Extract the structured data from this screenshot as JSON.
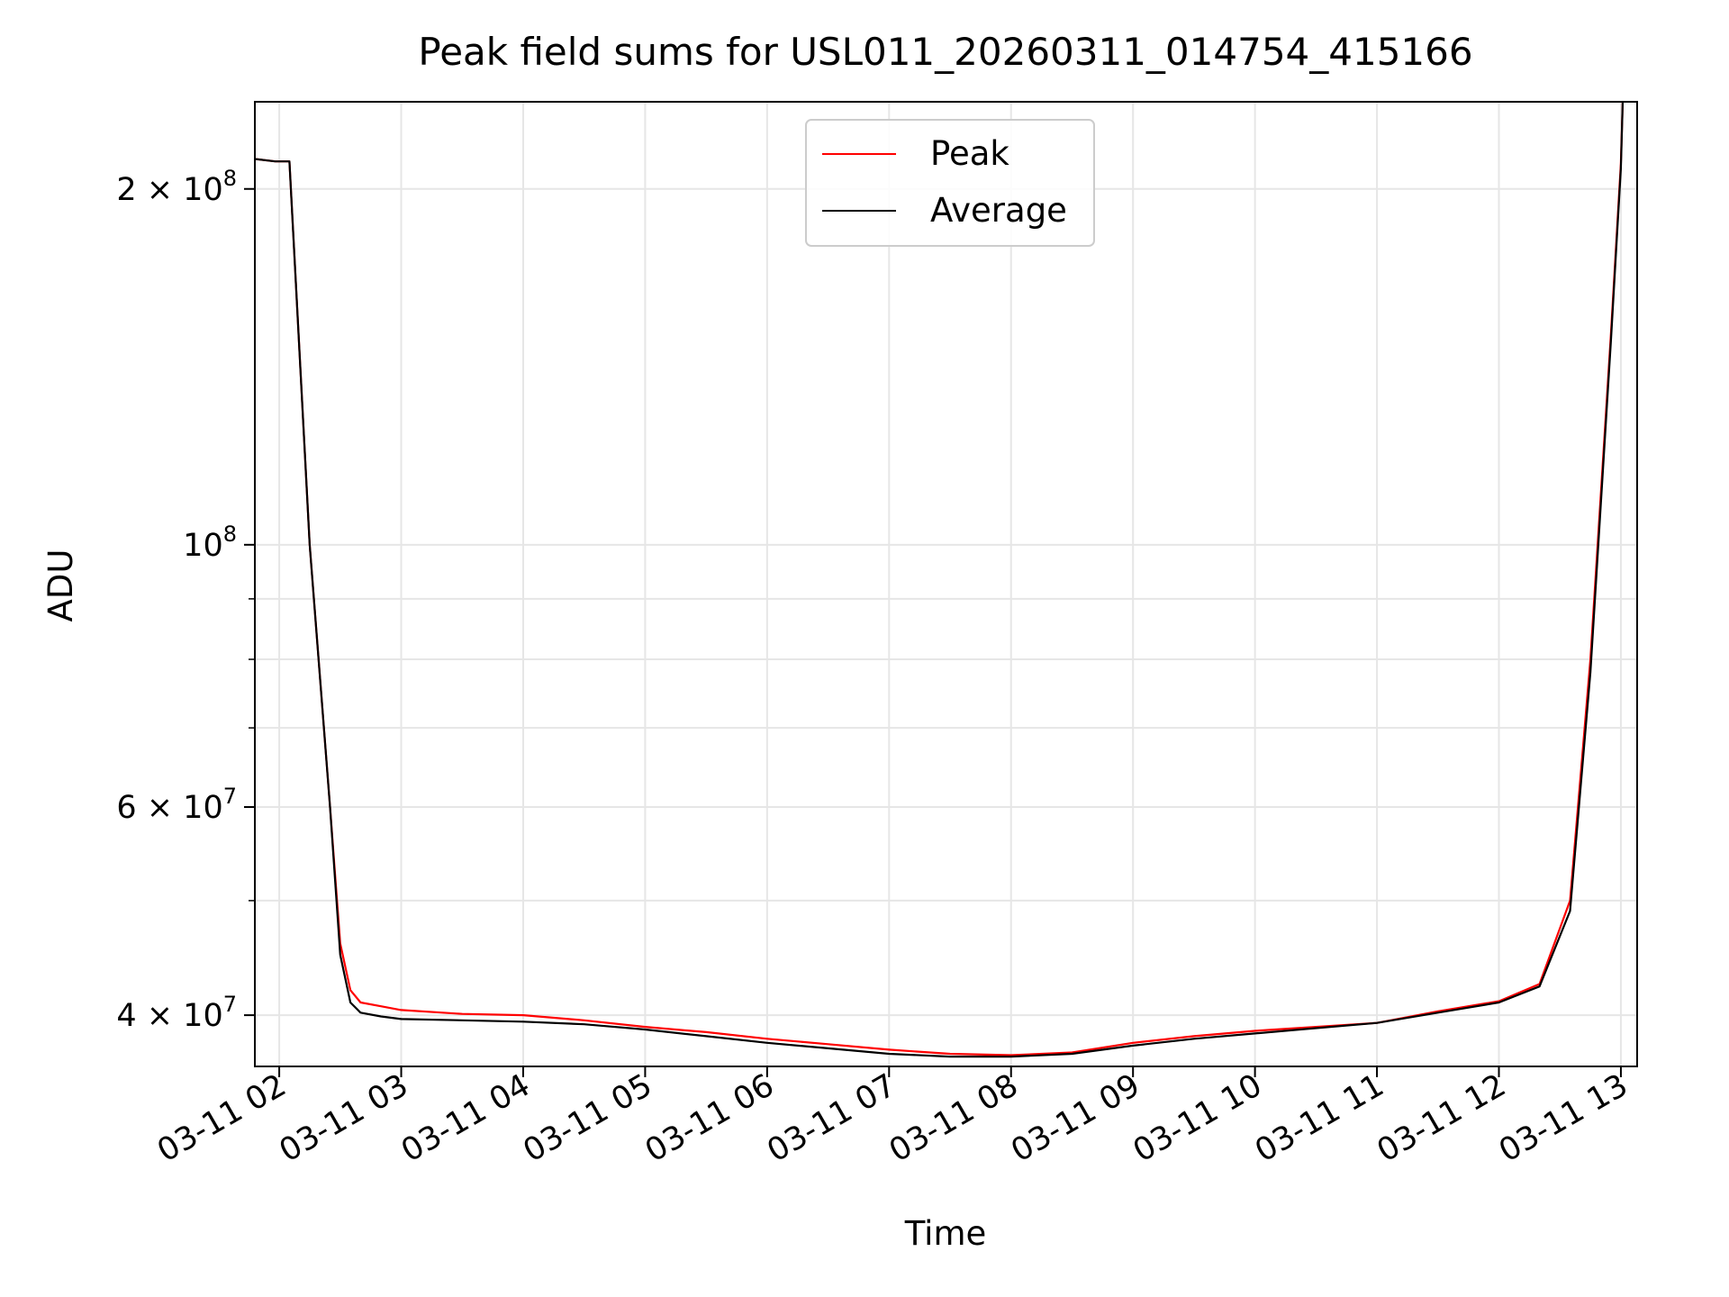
{
  "chart_data": {
    "type": "line",
    "title": "Peak field sums for USL011_20260311_014754_415166",
    "xlabel": "Time",
    "ylabel": "ADU",
    "x_scale": "time",
    "y_scale": "log",
    "xlim": [
      "2026-03-11 01:48",
      "2026-03-11 13:08"
    ],
    "ylim": [
      36200000,
      237000000
    ],
    "x_tick_labels": [
      "03-11 02",
      "03-11 03",
      "03-11 04",
      "03-11 05",
      "03-11 06",
      "03-11 07",
      "03-11 08",
      "03-11 09",
      "03-11 10",
      "03-11 11",
      "03-11 12",
      "03-11 13"
    ],
    "x_tick_times": [
      "2026-03-11 02:00",
      "2026-03-11 03:00",
      "2026-03-11 04:00",
      "2026-03-11 05:00",
      "2026-03-11 06:00",
      "2026-03-11 07:00",
      "2026-03-11 08:00",
      "2026-03-11 09:00",
      "2026-03-11 10:00",
      "2026-03-11 11:00",
      "2026-03-11 12:00",
      "2026-03-11 13:00"
    ],
    "y_ticks": [
      {
        "value": 40000000,
        "mantissa": "4",
        "exponent": "7"
      },
      {
        "value": 60000000,
        "mantissa": "6",
        "exponent": "7"
      },
      {
        "value": 100000000,
        "mantissa": "",
        "exponent": "8"
      },
      {
        "value": 200000000,
        "mantissa": "2",
        "exponent": "8"
      }
    ],
    "y_minor_ticks": [
      50000000,
      70000000,
      80000000,
      90000000
    ],
    "grid": true,
    "legend_position": "upper center",
    "series": [
      {
        "name": "Peak",
        "color": "#ff0000",
        "x": [
          "2026-03-11 01:48",
          "2026-03-11 01:58",
          "2026-03-11 02:05",
          "2026-03-11 02:15",
          "2026-03-11 02:25",
          "2026-03-11 02:30",
          "2026-03-11 02:35",
          "2026-03-11 02:40",
          "2026-03-11 02:50",
          "2026-03-11 03:00",
          "2026-03-11 03:30",
          "2026-03-11 04:00",
          "2026-03-11 04:30",
          "2026-03-11 05:00",
          "2026-03-11 05:30",
          "2026-03-11 06:00",
          "2026-03-11 06:30",
          "2026-03-11 07:00",
          "2026-03-11 07:30",
          "2026-03-11 08:00",
          "2026-03-11 08:30",
          "2026-03-11 09:00",
          "2026-03-11 09:30",
          "2026-03-11 10:00",
          "2026-03-11 10:30",
          "2026-03-11 11:00",
          "2026-03-11 11:30",
          "2026-03-11 12:00",
          "2026-03-11 12:20",
          "2026-03-11 12:35",
          "2026-03-11 12:45",
          "2026-03-11 12:55",
          "2026-03-11 13:00",
          "2026-03-11 13:01"
        ],
        "y": [
          212000000,
          211000000,
          211000000,
          100000000,
          60000000,
          46000000,
          42000000,
          41000000,
          40700000,
          40400000,
          40100000,
          40000000,
          39600000,
          39100000,
          38700000,
          38200000,
          37800000,
          37400000,
          37100000,
          37000000,
          37200000,
          37900000,
          38400000,
          38800000,
          39100000,
          39400000,
          40300000,
          41100000,
          42500000,
          50000000,
          80000000,
          150000000,
          210000000,
          240000000
        ]
      },
      {
        "name": "Average",
        "color": "#000000",
        "x": [
          "2026-03-11 01:48",
          "2026-03-11 01:58",
          "2026-03-11 02:05",
          "2026-03-11 02:15",
          "2026-03-11 02:25",
          "2026-03-11 02:30",
          "2026-03-11 02:35",
          "2026-03-11 02:40",
          "2026-03-11 02:50",
          "2026-03-11 03:00",
          "2026-03-11 03:30",
          "2026-03-11 04:00",
          "2026-03-11 04:30",
          "2026-03-11 05:00",
          "2026-03-11 05:30",
          "2026-03-11 06:00",
          "2026-03-11 06:30",
          "2026-03-11 07:00",
          "2026-03-11 07:30",
          "2026-03-11 08:00",
          "2026-03-11 08:30",
          "2026-03-11 09:00",
          "2026-03-11 09:30",
          "2026-03-11 10:00",
          "2026-03-11 10:30",
          "2026-03-11 11:00",
          "2026-03-11 11:30",
          "2026-03-11 12:00",
          "2026-03-11 12:20",
          "2026-03-11 12:35",
          "2026-03-11 12:45",
          "2026-03-11 12:55",
          "2026-03-11 13:00",
          "2026-03-11 13:01"
        ],
        "y": [
          212000000,
          211000000,
          211000000,
          100000000,
          60000000,
          45000000,
          41000000,
          40200000,
          39900000,
          39700000,
          39600000,
          39500000,
          39300000,
          38900000,
          38400000,
          37900000,
          37500000,
          37100000,
          36900000,
          36900000,
          37100000,
          37700000,
          38200000,
          38600000,
          39000000,
          39400000,
          40200000,
          41000000,
          42300000,
          49000000,
          78000000,
          148000000,
          208000000,
          240000000
        ]
      }
    ]
  }
}
